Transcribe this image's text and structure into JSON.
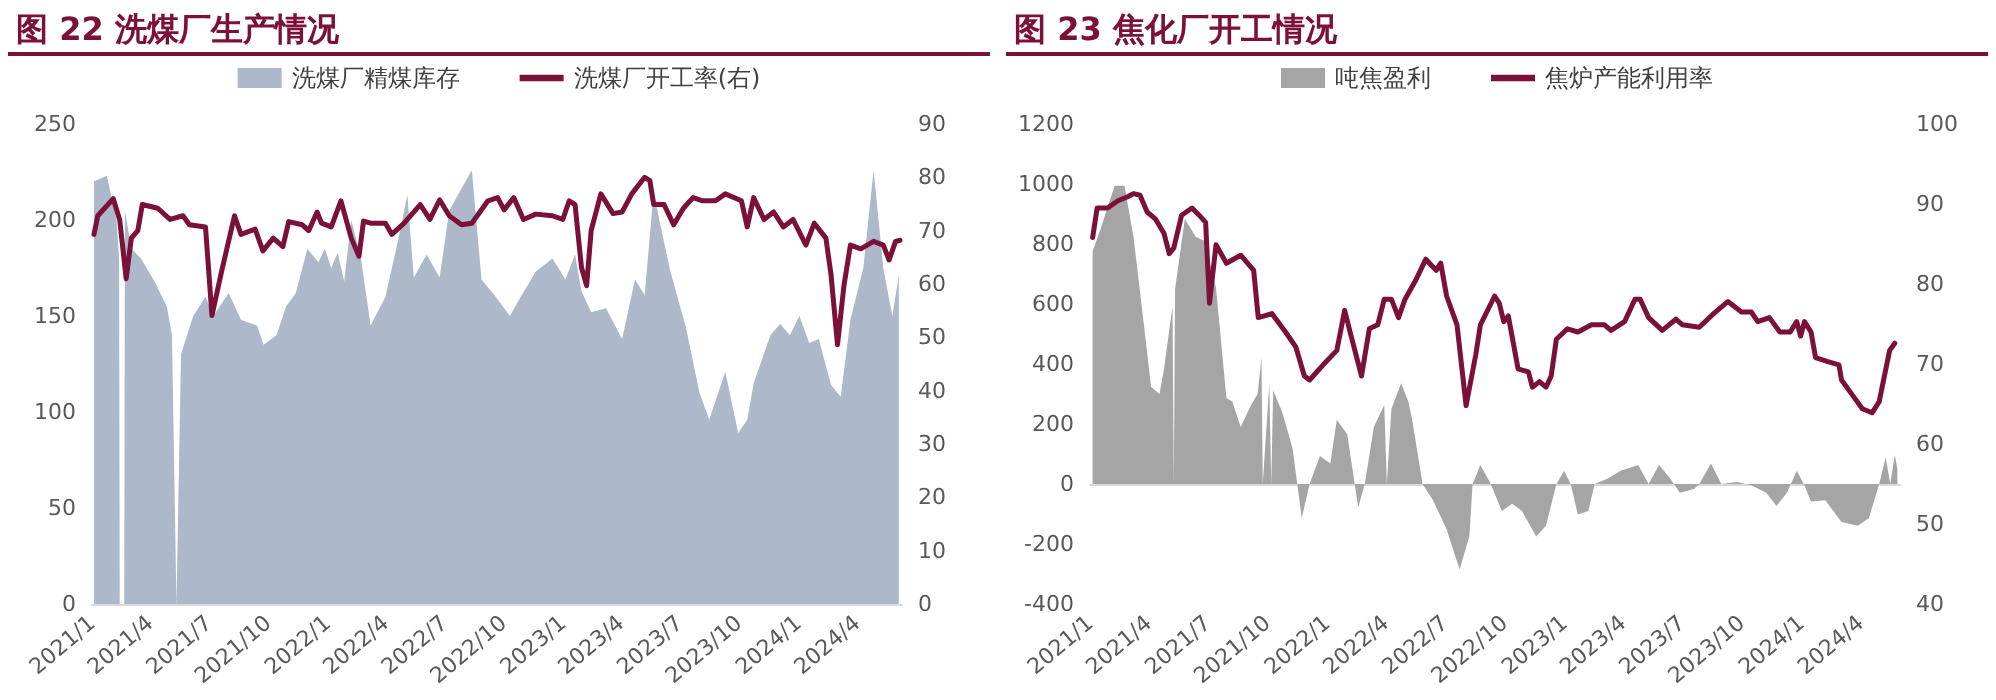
{
  "chart_data": [
    {
      "type": "area",
      "title": "图 22 洗煤厂生产情况",
      "legend": "top",
      "marker": "none",
      "xlim": [
        "2021-01-01",
        "2024-06-10"
      ],
      "ylim": [
        0,
        250
      ],
      "yticks": [
        0,
        50,
        100,
        150,
        200,
        250
      ],
      "y2lim": [
        0,
        90
      ],
      "y2ticks": [
        0,
        10,
        20,
        30,
        40,
        50,
        60,
        70,
        80,
        90
      ],
      "xticks": [
        {
          "value": "2021-01-01",
          "label": "2021/1"
        },
        {
          "value": "2021-04-01",
          "label": "2021/4"
        },
        {
          "value": "2021-07-01",
          "label": "2021/7"
        },
        {
          "value": "2021-10-01",
          "label": "2021/10"
        },
        {
          "value": "2022-01-01",
          "label": "2022/1"
        },
        {
          "value": "2022-04-01",
          "label": "2022/4"
        },
        {
          "value": "2022-07-01",
          "label": "2022/7"
        },
        {
          "value": "2022-10-01",
          "label": "2022/10"
        },
        {
          "value": "2023-01-01",
          "label": "2023/1"
        },
        {
          "value": "2023-04-01",
          "label": "2023/4"
        },
        {
          "value": "2023-07-01",
          "label": "2023/7"
        },
        {
          "value": "2023-10-01",
          "label": "2023/10"
        },
        {
          "value": "2024-01-01",
          "label": "2024/1"
        },
        {
          "value": "2024-04-01",
          "label": "2024/4"
        }
      ],
      "series": [
        {
          "name": "洗煤厂精煤库存",
          "color": "#adb9ca",
          "x": [
            "2021-01-04",
            "2021-01-24",
            "2021-02-08",
            "2021-02-12",
            "2021-02-13",
            "2021-02-20",
            "2021-02-21",
            "2021-03-03",
            "2021-03-18",
            "2021-04-08",
            "2021-04-27",
            "2021-05-05",
            "2021-05-12",
            "2021-05-19",
            "2021-06-07",
            "2021-06-26",
            "2021-07-08",
            "2021-08-01",
            "2021-08-20",
            "2021-09-14",
            "2021-09-24",
            "2021-10-14",
            "2021-10-29",
            "2021-11-13",
            "2021-12-01",
            "2021-12-18",
            "2021-12-28",
            "2022-01-07",
            "2022-01-17",
            "2022-01-27",
            "2022-02-07",
            "2022-02-22",
            "2022-03-09",
            "2022-04-01",
            "2022-04-21",
            "2022-05-05",
            "2022-05-15",
            "2022-06-04",
            "2022-06-24",
            "2022-07-09",
            "2022-08-13",
            "2022-08-28",
            "2022-09-17",
            "2022-10-11",
            "2022-10-26",
            "2022-11-20",
            "2022-12-16",
            "2023-01-05",
            "2023-01-20",
            "2023-01-30",
            "2023-02-14",
            "2023-03-09",
            "2023-04-03",
            "2023-04-23",
            "2023-05-08",
            "2023-05-22",
            "2023-05-30",
            "2023-06-17",
            "2023-07-11",
            "2023-08-01",
            "2023-08-16",
            "2023-09-10",
            "2023-09-30",
            "2023-10-14",
            "2023-10-24",
            "2023-11-19",
            "2023-12-04",
            "2023-12-19",
            "2024-01-03",
            "2024-01-18",
            "2024-02-02",
            "2024-02-21",
            "2024-03-07",
            "2024-03-22",
            "2024-04-11",
            "2024-04-27",
            "2024-05-12",
            "2024-05-26",
            "2024-06-05"
          ],
          "values": [
            220,
            223,
            200,
            180,
            0,
            0,
            205,
            185,
            180,
            168,
            155,
            140,
            0,
            130,
            150,
            160,
            150,
            162,
            148,
            145,
            135,
            140,
            155,
            162,
            185,
            178,
            185,
            175,
            183,
            168,
            200,
            180,
            145,
            160,
            190,
            213,
            170,
            182,
            170,
            205,
            226,
            169,
            161,
            150,
            159,
            173,
            180,
            169,
            182,
            163,
            152,
            154,
            138,
            169,
            161,
            215,
            201,
            173,
            144,
            110,
            96,
            121,
            89,
            96,
            115,
            140,
            146,
            140,
            150,
            136,
            138,
            114,
            108,
            148,
            175,
            226,
            175,
            150,
            171
          ]
        },
        {
          "name": "洗煤厂开工率(右)",
          "type": "line",
          "axis": "y2",
          "color": "#7b1038",
          "x": [
            "2021-01-04",
            "2021-01-10",
            "2021-02-03",
            "2021-02-13",
            "2021-02-23",
            "2021-03-03",
            "2021-03-13",
            "2021-03-20",
            "2021-04-13",
            "2021-05-02",
            "2021-05-22",
            "2021-06-01",
            "2021-06-26",
            "2021-07-06",
            "2021-07-21",
            "2021-08-10",
            "2021-08-20",
            "2021-09-11",
            "2021-09-23",
            "2021-10-09",
            "2021-10-24",
            "2021-11-02",
            "2021-11-23",
            "2021-12-03",
            "2021-12-16",
            "2021-12-23",
            "2022-01-07",
            "2022-01-22",
            "2022-02-07",
            "2022-02-19",
            "2022-02-26",
            "2022-03-09",
            "2022-04-01",
            "2022-04-11",
            "2022-04-30",
            "2022-05-25",
            "2022-06-09",
            "2022-06-24",
            "2022-07-09",
            "2022-07-28",
            "2022-08-13",
            "2022-09-07",
            "2022-09-22",
            "2022-10-02",
            "2022-10-17",
            "2022-11-01",
            "2022-11-20",
            "2022-12-16",
            "2023-01-01",
            "2023-01-11",
            "2023-01-20",
            "2023-01-30",
            "2023-02-07",
            "2023-02-14",
            "2023-03-01",
            "2023-03-20",
            "2023-04-03",
            "2023-04-18",
            "2023-05-08",
            "2023-05-16",
            "2023-05-22",
            "2023-06-07",
            "2023-06-22",
            "2023-07-07",
            "2023-07-22",
            "2023-08-06",
            "2023-08-26",
            "2023-09-10",
            "2023-10-05",
            "2023-10-14",
            "2023-10-24",
            "2023-11-09",
            "2023-11-24",
            "2023-12-09",
            "2023-12-24",
            "2024-01-13",
            "2024-01-26",
            "2024-02-13",
            "2024-02-21",
            "2024-03-02",
            "2024-03-12",
            "2024-03-22",
            "2024-04-07",
            "2024-04-27",
            "2024-05-12",
            "2024-05-21",
            "2024-05-31",
            "2024-06-07"
          ],
          "values": [
            69.3,
            72.8,
            76,
            72,
            61,
            68.6,
            70,
            74.9,
            74.2,
            72.1,
            72.8,
            71.1,
            70.7,
            54.1,
            62.4,
            72.8,
            69.3,
            70.3,
            66.2,
            68.6,
            67,
            71.7,
            71.1,
            70,
            73.5,
            71.4,
            70.7,
            75.6,
            68.6,
            65.2,
            71.8,
            71.4,
            71.4,
            69.3,
            71.4,
            74.9,
            72.1,
            75.8,
            72.8,
            71.1,
            71.4,
            75.6,
            76.2,
            73.9,
            76.2,
            72.1,
            73.1,
            72.8,
            72.1,
            75.6,
            74.9,
            63.1,
            59.7,
            70,
            76.9,
            73.2,
            73.5,
            76.9,
            80,
            79.4,
            74.9,
            74.9,
            71.1,
            74.2,
            76.2,
            75.6,
            75.6,
            76.9,
            75.6,
            70.7,
            76.2,
            72.1,
            73.5,
            70.7,
            72.1,
            67.3,
            71.4,
            68.6,
            61.7,
            48.6,
            59.7,
            67.3,
            66.6,
            68,
            67.3,
            64.5,
            68,
            68.2
          ]
        }
      ]
    },
    {
      "type": "area",
      "title": "图 23 焦化厂开工情况",
      "legend": "top",
      "marker": "none",
      "xlim": [
        "2021-01-01",
        "2024-06-01"
      ],
      "ylim": [
        -400,
        1200
      ],
      "yticks": [
        -400,
        -200,
        0,
        200,
        400,
        600,
        800,
        1000,
        1200
      ],
      "y2lim": [
        40,
        100
      ],
      "y2ticks": [
        40,
        50,
        60,
        70,
        80,
        90,
        100
      ],
      "xticks": [
        {
          "value": "2021-01-01",
          "label": "2021/1"
        },
        {
          "value": "2021-04-01",
          "label": "2021/4"
        },
        {
          "value": "2021-07-01",
          "label": "2021/7"
        },
        {
          "value": "2021-10-01",
          "label": "2021/10"
        },
        {
          "value": "2022-01-01",
          "label": "2022/1"
        },
        {
          "value": "2022-04-01",
          "label": "2022/4"
        },
        {
          "value": "2022-07-01",
          "label": "2022/7"
        },
        {
          "value": "2022-10-01",
          "label": "2022/10"
        },
        {
          "value": "2023-01-01",
          "label": "2023/1"
        },
        {
          "value": "2023-04-01",
          "label": "2023/4"
        },
        {
          "value": "2023-07-01",
          "label": "2023/7"
        },
        {
          "value": "2023-10-01",
          "label": "2023/10"
        },
        {
          "value": "2024-01-01",
          "label": "2024/1"
        },
        {
          "value": "2024-04-01",
          "label": "2024/4"
        }
      ],
      "series": [
        {
          "name": "吨焦盈利",
          "color": "#a5a5a5",
          "x": [
            "2021-01-05",
            "2021-01-17",
            "2021-02-08",
            "2021-02-23",
            "2021-03-09",
            "2021-03-25",
            "2021-04-05",
            "2021-04-18",
            "2021-04-25",
            "2021-05-08",
            "2021-05-10",
            "2021-05-12",
            "2021-05-27",
            "2021-06-13",
            "2021-06-26",
            "2021-07-14",
            "2021-07-30",
            "2021-08-08",
            "2021-08-21",
            "2021-09-06",
            "2021-09-16",
            "2021-09-22",
            "2021-09-24",
            "2021-10-04",
            "2021-10-07",
            "2021-10-10",
            "2021-10-24",
            "2021-11-09",
            "2021-11-23",
            "2021-12-05",
            "2021-12-21",
            "2022-01-06",
            "2022-01-16",
            "2022-02-01",
            "2022-02-18",
            "2022-02-28",
            "2022-03-14",
            "2022-03-30",
            "2022-04-03",
            "2022-04-10",
            "2022-04-25",
            "2022-05-06",
            "2022-05-12",
            "2022-05-28",
            "2022-06-13",
            "2022-07-04",
            "2022-07-24",
            "2022-08-08",
            "2022-08-13",
            "2022-08-25",
            "2022-09-10",
            "2022-09-27",
            "2022-10-13",
            "2022-10-28",
            "2022-11-19",
            "2022-12-04",
            "2022-12-20",
            "2023-01-01",
            "2023-01-11",
            "2023-01-22",
            "2023-02-07",
            "2023-02-17",
            "2023-03-10",
            "2023-03-29",
            "2023-04-25",
            "2023-05-11",
            "2023-05-27",
            "2023-06-13",
            "2023-06-28",
            "2023-07-20",
            "2023-07-28",
            "2023-08-15",
            "2023-08-31",
            "2023-09-25",
            "2023-10-17",
            "2023-11-08",
            "2023-11-24",
            "2023-12-10",
            "2023-12-25",
            "2024-01-05",
            "2024-01-16",
            "2024-02-07",
            "2024-03-03",
            "2024-03-28",
            "2024-04-14",
            "2024-04-30",
            "2024-05-10",
            "2024-05-17",
            "2024-05-24",
            "2024-05-28"
          ],
          "values": [
            775,
            848,
            994,
            994,
            823,
            531,
            324,
            300,
            385,
            592,
            0,
            650,
            884,
            823,
            811,
            653,
            287,
            275,
            190,
            263,
            300,
            421,
            0,
            336,
            0,
            312,
            239,
            117,
            -114,
            0,
            93,
            68,
            214,
            166,
            -78,
            0,
            190,
            263,
            0,
            251,
            336,
            275,
            214,
            0,
            -54,
            -151,
            -285,
            -175,
            0,
            63,
            0,
            -90,
            -66,
            -90,
            -175,
            -139,
            0,
            44,
            0,
            -102,
            -90,
            0,
            19,
            44,
            63,
            0,
            63,
            19,
            -29,
            -17,
            0,
            68,
            0,
            7,
            -5,
            -29,
            -73,
            -29,
            44,
            0,
            -58,
            -54,
            -127,
            -139,
            -114,
            0,
            88,
            0,
            97,
            50
          ]
        },
        {
          "name": "焦炉产能利用率",
          "type": "line",
          "axis": "y2",
          "color": "#7b1038",
          "x": [
            "2021-01-05",
            "2021-01-12",
            "2021-01-28",
            "2021-02-13",
            "2021-02-28",
            "2021-03-09",
            "2021-03-19",
            "2021-03-30",
            "2021-04-12",
            "2021-04-25",
            "2021-05-03",
            "2021-05-10",
            "2021-05-22",
            "2021-06-07",
            "2021-06-18",
            "2021-06-28",
            "2021-07-04",
            "2021-07-14",
            "2021-07-30",
            "2021-08-21",
            "2021-09-10",
            "2021-09-17",
            "2021-10-08",
            "2021-10-29",
            "2021-11-14",
            "2021-11-27",
            "2021-12-05",
            "2021-12-26",
            "2022-01-16",
            "2022-01-28",
            "2022-02-07",
            "2022-02-23",
            "2022-03-07",
            "2022-03-20",
            "2022-03-30",
            "2022-04-10",
            "2022-04-21",
            "2022-05-01",
            "2022-05-17",
            "2022-06-02",
            "2022-06-18",
            "2022-06-25",
            "2022-07-04",
            "2022-07-20",
            "2022-08-03",
            "2022-08-18",
            "2022-08-25",
            "2022-09-16",
            "2022-09-23",
            "2022-09-30",
            "2022-10-07",
            "2022-10-22",
            "2022-11-07",
            "2022-11-13",
            "2022-11-24",
            "2022-12-04",
            "2022-12-12",
            "2022-12-20",
            "2023-01-06",
            "2023-01-22",
            "2023-02-12",
            "2023-03-04",
            "2023-03-14",
            "2023-04-04",
            "2023-04-20",
            "2023-04-28",
            "2023-05-11",
            "2023-06-01",
            "2023-06-22",
            "2023-07-02",
            "2023-07-28",
            "2023-08-19",
            "2023-09-10",
            "2023-10-01",
            "2023-10-16",
            "2023-10-26",
            "2023-11-13",
            "2023-11-29",
            "2023-12-15",
            "2023-12-25",
            "2023-12-31",
            "2024-01-06",
            "2024-01-16",
            "2024-01-23",
            "2024-02-11",
            "2024-02-28",
            "2024-03-03",
            "2024-03-19",
            "2024-04-04",
            "2024-04-19",
            "2024-04-30",
            "2024-05-16",
            "2024-05-24"
          ],
          "values": [
            85.8,
            89.5,
            89.5,
            90.4,
            90.9,
            91.3,
            91.1,
            89,
            88.1,
            86.3,
            83.8,
            84.5,
            88.6,
            89.5,
            88.6,
            87.7,
            77.6,
            84.9,
            82.6,
            83.6,
            81.7,
            75.8,
            76.3,
            74,
            72.1,
            68.5,
            68,
            69.9,
            71.7,
            76.7,
            73.5,
            68.5,
            74.4,
            74.9,
            78.1,
            78.1,
            75.8,
            78.1,
            80.4,
            83.1,
            81.7,
            82.6,
            78.5,
            74.9,
            64.8,
            71.2,
            74.9,
            78.5,
            77.6,
            75.3,
            76,
            69.4,
            69,
            67.1,
            67.8,
            67.1,
            68.5,
            73.1,
            74.4,
            74,
            74.9,
            74.9,
            74.2,
            75.3,
            78.1,
            78.1,
            75.8,
            74.2,
            75.6,
            74.9,
            74.6,
            76.3,
            77.8,
            76.5,
            76.5,
            75.3,
            75.8,
            74,
            74,
            75.3,
            73.5,
            75.3,
            74,
            70.8,
            70.3,
            69.9,
            68,
            66.2,
            64.4,
            63.9,
            65.3,
            71.7,
            72.6
          ]
        }
      ]
    }
  ]
}
